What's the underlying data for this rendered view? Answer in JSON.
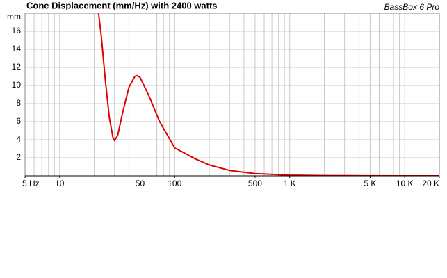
{
  "chart_data": {
    "type": "line",
    "title": "Cone Displacement (mm/Hz) with 2400 watts",
    "subtitle": "BassBox 6 Pro",
    "y_label": "mm",
    "x_scale": "log",
    "grid": true,
    "xlim": [
      5,
      20000
    ],
    "ylim": [
      0,
      18
    ],
    "xticks": [
      {
        "value": 5,
        "label": "5 Hz"
      },
      10,
      50,
      100,
      500,
      {
        "value": 1000,
        "label": "1 K"
      },
      {
        "value": 5000,
        "label": "5 K"
      },
      {
        "value": 10000,
        "label": "10 K"
      },
      {
        "value": 20000,
        "label": "20 K"
      }
    ],
    "yticks": [
      2,
      4,
      6,
      8,
      10,
      12,
      14,
      16
    ],
    "x": [
      21.8,
      23,
      25,
      27,
      29,
      30,
      32,
      35,
      40,
      45,
      47,
      50,
      60,
      74,
      100,
      150,
      200,
      300,
      500,
      1000,
      2000,
      5000,
      10000,
      20000
    ],
    "series": [
      {
        "color": "#e00000",
        "values": [
          18,
          15.5,
          10.5,
          6.5,
          4.3,
          3.9,
          4.5,
          6.8,
          9.8,
          11.0,
          11.1,
          10.9,
          8.8,
          6.0,
          3.1,
          1.9,
          1.2,
          0.6,
          0.25,
          0.08,
          0.03,
          0.01,
          0,
          0
        ]
      }
    ]
  }
}
